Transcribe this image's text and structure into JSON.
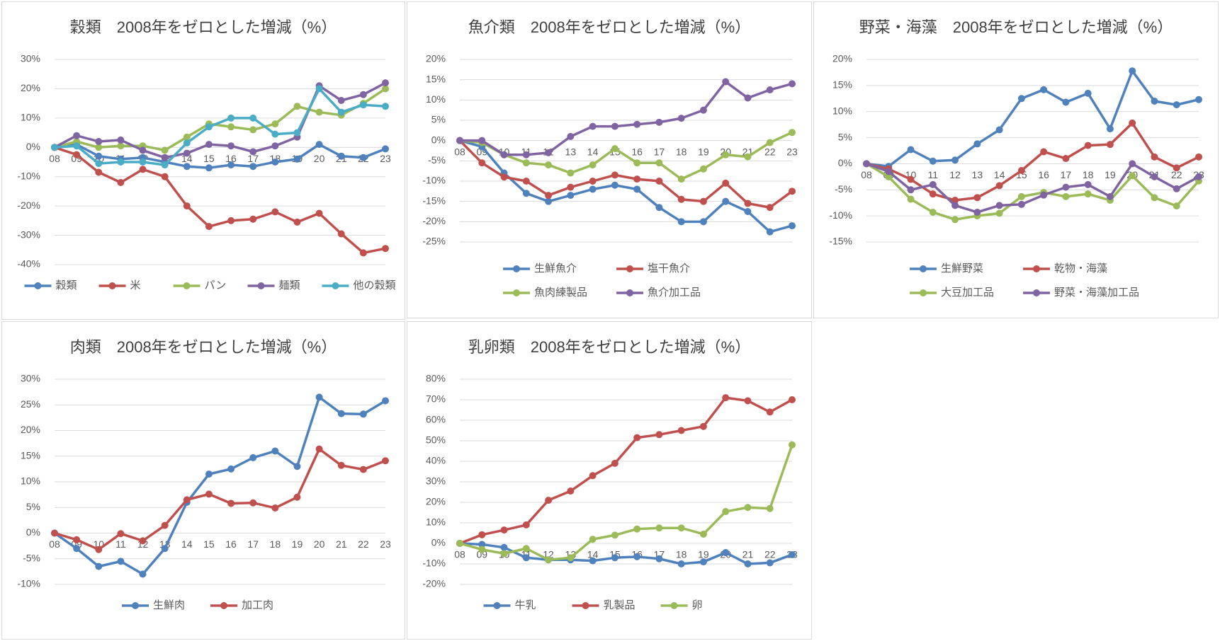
{
  "chart_data": [
    {
      "type": "line",
      "title": "穀類　2008年をゼロとした増減（%）",
      "categories": [
        "08",
        "09",
        "10",
        "11",
        "12",
        "13",
        "14",
        "15",
        "16",
        "17",
        "18",
        "19",
        "20",
        "21",
        "22",
        "23"
      ],
      "series": [
        {
          "name": "穀類",
          "color": "#4f81bd",
          "values": [
            0,
            1,
            -3,
            -4,
            -3.5,
            -5,
            -6.5,
            -7,
            -6,
            -6.5,
            -5,
            -4,
            1,
            -3,
            -3.5,
            -0.5
          ]
        },
        {
          "name": "米",
          "color": "#c0504d",
          "values": [
            0,
            -2.5,
            -8.5,
            -12,
            -7.5,
            -10,
            -20,
            -27,
            -25,
            -24.5,
            -22,
            -25.5,
            -22.5,
            -29.5,
            -36,
            -34.5
          ]
        },
        {
          "name": "パン",
          "color": "#9bbb59",
          "values": [
            0,
            2,
            0,
            0.5,
            0.5,
            -1,
            3.5,
            8,
            7,
            6,
            8,
            14,
            12,
            11,
            15,
            20
          ]
        },
        {
          "name": "麺類",
          "color": "#8064a2",
          "values": [
            0,
            4,
            2,
            2.5,
            -1,
            -3.5,
            -2,
            1,
            0.5,
            -1.5,
            0.5,
            3.5,
            21,
            16,
            18,
            22
          ]
        },
        {
          "name": "他の穀類",
          "color": "#4bacc6",
          "values": [
            0,
            0.5,
            -5.5,
            -5,
            -5,
            -6,
            1.5,
            7,
            10,
            10,
            4.5,
            5,
            20,
            12,
            14.5,
            14
          ]
        }
      ],
      "ylim": [
        -40,
        30
      ],
      "yticks": [
        {
          "value": 30,
          "label": "30%"
        },
        {
          "value": 20,
          "label": "20%"
        },
        {
          "value": 10,
          "label": "10%"
        },
        {
          "value": 0,
          "label": "0%"
        },
        {
          "value": -10,
          "label": "-10%"
        },
        {
          "value": -20,
          "label": "-20%"
        },
        {
          "value": -30,
          "label": "-30%"
        },
        {
          "value": -40,
          "label": "-40%"
        }
      ],
      "grid": true,
      "legend": "bottom"
    },
    {
      "type": "line",
      "title": "魚介類　2008年をゼロとした増減（%）",
      "categories": [
        "08",
        "09",
        "10",
        "11",
        "12",
        "13",
        "14",
        "15",
        "16",
        "17",
        "18",
        "19",
        "20",
        "21",
        "22",
        "23"
      ],
      "series": [
        {
          "name": "生鮮魚介",
          "color": "#4f81bd",
          "values": [
            0,
            -1.5,
            -8,
            -13,
            -15,
            -13.5,
            -12,
            -11,
            -12,
            -16.5,
            -20,
            -20,
            -15,
            -17.5,
            -22.5,
            -21
          ]
        },
        {
          "name": "塩干魚介",
          "color": "#c0504d",
          "values": [
            0,
            -5.5,
            -9,
            -10,
            -13.5,
            -11.5,
            -10,
            -8.5,
            -9.5,
            -10,
            -14.5,
            -15,
            -10.5,
            -15.5,
            -16.5,
            -12.5
          ]
        },
        {
          "name": "魚肉練製品",
          "color": "#9bbb59",
          "values": [
            0,
            -0.5,
            -3.5,
            -5.5,
            -6,
            -8,
            -6,
            -2,
            -5.5,
            -5.5,
            -9.5,
            -7,
            -3.5,
            -4,
            -0.5,
            2
          ]
        },
        {
          "name": "魚介加工品",
          "color": "#8064a2",
          "values": [
            0,
            0,
            -3.5,
            -3.5,
            -3,
            1,
            3.5,
            3.5,
            4,
            4.5,
            5.5,
            7.5,
            14.5,
            10.5,
            12.5,
            14
          ]
        }
      ],
      "ylim": [
        -25,
        20
      ],
      "yticks": [
        {
          "value": 20,
          "label": "20%"
        },
        {
          "value": 15,
          "label": "15%"
        },
        {
          "value": 10,
          "label": "10%"
        },
        {
          "value": 5,
          "label": "5%"
        },
        {
          "value": 0,
          "label": "0%"
        },
        {
          "value": -5,
          "label": "-5%"
        },
        {
          "value": -10,
          "label": "-10%"
        },
        {
          "value": -15,
          "label": "-15%"
        },
        {
          "value": -20,
          "label": "-20%"
        },
        {
          "value": -25,
          "label": "-25%"
        }
      ],
      "grid": true,
      "legend": "bottom"
    },
    {
      "type": "line",
      "title": "野菜・海藻　2008年をゼロとした増減（%）",
      "categories": [
        "08",
        "09",
        "10",
        "11",
        "12",
        "13",
        "14",
        "15",
        "16",
        "17",
        "18",
        "19",
        "20",
        "21",
        "22",
        "23"
      ],
      "series": [
        {
          "name": "生鮮野菜",
          "color": "#4f81bd",
          "values": [
            0,
            -0.5,
            2.7,
            0.5,
            0.7,
            3.8,
            6.5,
            12.5,
            14.2,
            11.8,
            13.5,
            6.7,
            17.8,
            12,
            11.3,
            12.3
          ]
        },
        {
          "name": "乾物・海藻",
          "color": "#c0504d",
          "values": [
            0,
            -1,
            -3,
            -5.8,
            -7,
            -6.5,
            -4.2,
            -1.3,
            2.3,
            1,
            3.5,
            3.7,
            7.8,
            1.3,
            -0.8,
            1.3
          ]
        },
        {
          "name": "大豆加工品",
          "color": "#9bbb59",
          "values": [
            0,
            -2.5,
            -6.8,
            -9.3,
            -10.7,
            -10,
            -9.5,
            -6.3,
            -5.5,
            -6.3,
            -5.8,
            -7,
            -2.3,
            -6.5,
            -8.1,
            -3.3
          ]
        },
        {
          "name": "野菜・海藻加工品",
          "color": "#8064a2",
          "values": [
            0,
            -1.5,
            -5,
            -4,
            -8,
            -9.3,
            -8,
            -7.8,
            -6,
            -4.5,
            -4,
            -6.3,
            0,
            -2.5,
            -4.8,
            -2.5
          ]
        }
      ],
      "ylim": [
        -15,
        20
      ],
      "yticks": [
        {
          "value": 20,
          "label": "20%"
        },
        {
          "value": 15,
          "label": "15%"
        },
        {
          "value": 10,
          "label": "10%"
        },
        {
          "value": 5,
          "label": "5%"
        },
        {
          "value": 0,
          "label": "0%"
        },
        {
          "value": -5,
          "label": "-5%"
        },
        {
          "value": -10,
          "label": "-10%"
        },
        {
          "value": -15,
          "label": "-15%"
        }
      ],
      "grid": true,
      "legend": "bottom"
    },
    {
      "type": "line",
      "title": "肉類　2008年をゼロとした増減（%）",
      "categories": [
        "08",
        "09",
        "10",
        "11",
        "12",
        "13",
        "14",
        "15",
        "16",
        "17",
        "18",
        "19",
        "20",
        "21",
        "22",
        "23"
      ],
      "series": [
        {
          "name": "生鮮肉",
          "color": "#4f81bd",
          "values": [
            0,
            -3,
            -6.5,
            -5.5,
            -8,
            -3,
            6,
            11.5,
            12.5,
            14.7,
            16,
            13,
            26.5,
            23.3,
            23.2,
            25.8
          ]
        },
        {
          "name": "加工肉",
          "color": "#c0504d",
          "values": [
            0,
            -1.3,
            -3.2,
            -0.1,
            -1.5,
            1.5,
            6.5,
            7.6,
            5.8,
            5.9,
            4.9,
            7,
            16.4,
            13.2,
            12.4,
            14.1
          ]
        }
      ],
      "ylim": [
        -10,
        30
      ],
      "yticks": [
        {
          "value": 30,
          "label": "30%"
        },
        {
          "value": 25,
          "label": "25%"
        },
        {
          "value": 20,
          "label": "20%"
        },
        {
          "value": 15,
          "label": "15%"
        },
        {
          "value": 10,
          "label": "10%"
        },
        {
          "value": 5,
          "label": "5%"
        },
        {
          "value": 0,
          "label": "0%"
        },
        {
          "value": -5,
          "label": "-5%"
        },
        {
          "value": -10,
          "label": "-10%"
        }
      ],
      "grid": true,
      "legend": "bottom"
    },
    {
      "type": "line",
      "title": "乳卵類　2008年をゼロとした増減（%）",
      "categories": [
        "08",
        "09",
        "10",
        "11",
        "12",
        "13",
        "14",
        "15",
        "16",
        "17",
        "18",
        "19",
        "20",
        "21",
        "22",
        "23"
      ],
      "series": [
        {
          "name": "牛乳",
          "color": "#4f81bd",
          "values": [
            0,
            -0.5,
            -2,
            -7,
            -8,
            -8,
            -8.5,
            -7,
            -6.5,
            -7.5,
            -10,
            -9,
            -4.5,
            -10,
            -9.5,
            -5.5
          ]
        },
        {
          "name": "乳製品",
          "color": "#c0504d",
          "values": [
            0,
            4.2,
            6.5,
            9,
            21,
            25.5,
            33,
            39,
            51.5,
            53,
            55,
            57,
            71,
            69.5,
            64,
            70
          ]
        },
        {
          "name": "卵",
          "color": "#9bbb59",
          "values": [
            0,
            -3,
            -5,
            -2.5,
            -8,
            -7,
            2,
            4,
            7,
            7.5,
            7.5,
            4.5,
            15.5,
            17.5,
            17,
            48
          ]
        }
      ],
      "ylim": [
        -20,
        80
      ],
      "yticks": [
        {
          "value": 80,
          "label": "80%"
        },
        {
          "value": 70,
          "label": "70%"
        },
        {
          "value": 60,
          "label": "60%"
        },
        {
          "value": 50,
          "label": "50%"
        },
        {
          "value": 40,
          "label": "40%"
        },
        {
          "value": 30,
          "label": "30%"
        },
        {
          "value": 20,
          "label": "20%"
        },
        {
          "value": 10,
          "label": "10%"
        },
        {
          "value": 0,
          "label": "0%"
        },
        {
          "value": -10,
          "label": "-10%"
        },
        {
          "value": -20,
          "label": "-20%"
        }
      ],
      "grid": true,
      "legend": "bottom"
    }
  ]
}
